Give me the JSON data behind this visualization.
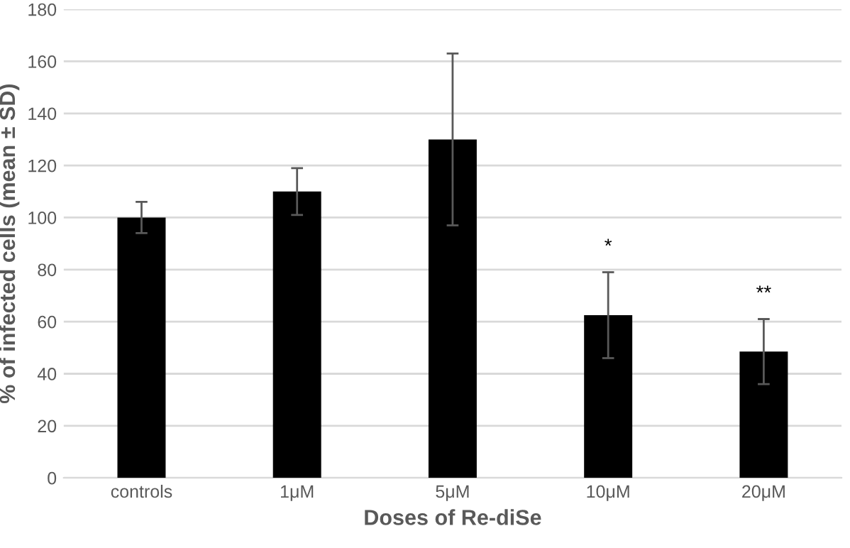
{
  "chart_data": {
    "type": "bar",
    "xlabel": "Doses of Re-diSe",
    "ylabel": "% of infected cells (mean ± SD)",
    "categories": [
      "controls",
      "1μM",
      "5μM",
      "10μM",
      "20μM"
    ],
    "values": [
      100,
      110,
      130,
      62.5,
      48.5
    ],
    "errors": [
      6,
      9,
      33,
      16.5,
      12.5
    ],
    "color": "#000000",
    "ylim": [
      0,
      180
    ],
    "yticks": [
      0,
      20,
      40,
      60,
      80,
      100,
      120,
      140,
      160,
      180
    ],
    "grid": "y",
    "annotations": [
      "*",
      "**"
    ]
  }
}
